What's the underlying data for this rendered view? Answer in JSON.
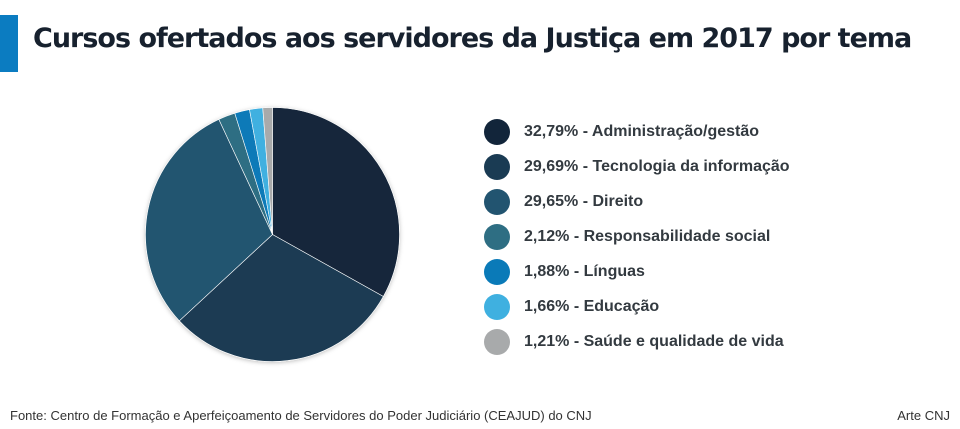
{
  "title": "Cursos ofertados aos servidores da Justiça em 2017 por tema",
  "source": "Fonte: Centro de Formação e Aperfeiçoamento de Servidores do Poder Judiciário (CEAJUD) do CNJ",
  "credit": "Arte CNJ",
  "chart_data": {
    "type": "pie",
    "title": "Cursos ofertados aos servidores da Justiça em 2017 por tema",
    "legend_position": "right",
    "slices": [
      {
        "label": "32,79% - Administração/gestão",
        "value": 32.79,
        "color": "#12253a"
      },
      {
        "label": "29,69% - Tecnologia da informação",
        "value": 29.69,
        "color": "#1a3b53"
      },
      {
        "label": "29,65% - Direito",
        "value": 29.65,
        "color": "#225470"
      },
      {
        "label": "2,12% - Responsabilidade social",
        "value": 2.12,
        "color": "#2e6e83"
      },
      {
        "label": "1,88% - Línguas",
        "value": 1.88,
        "color": "#0a7ab8"
      },
      {
        "label": "1,66% - Educação",
        "value": 1.66,
        "color": "#3fb0e0"
      },
      {
        "label": "1,21% - Saúde e qualidade de vida",
        "value": 1.21,
        "color": "#a8aaab"
      }
    ]
  }
}
